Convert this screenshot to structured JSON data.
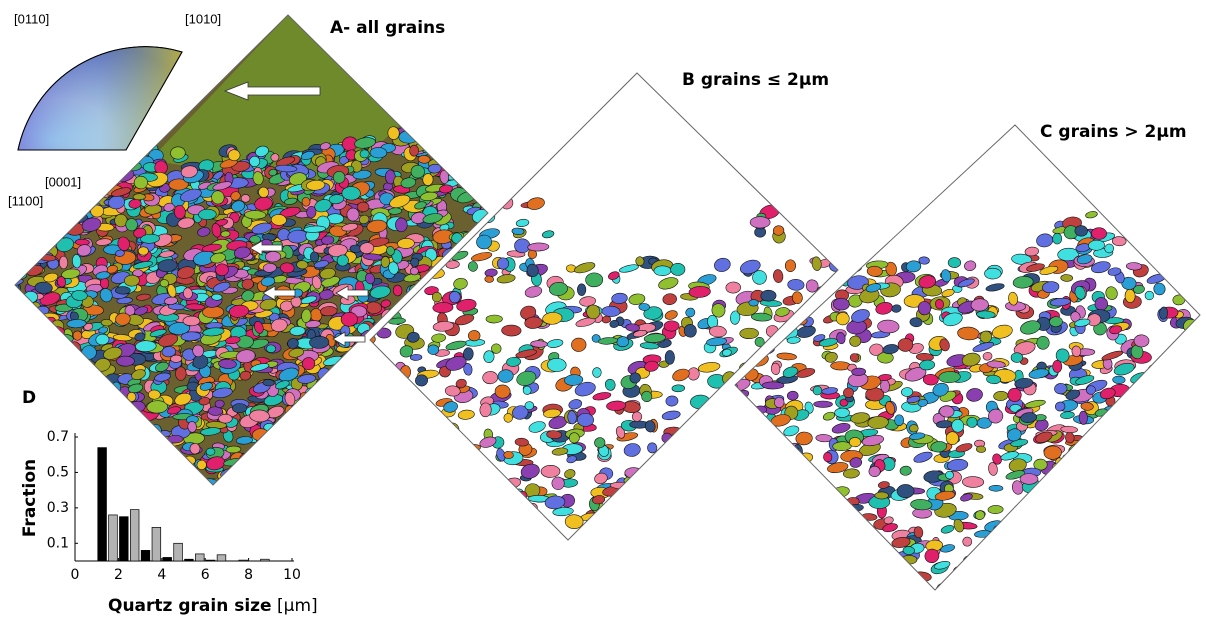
{
  "panels": {
    "a_title": "A- all grains",
    "b_title": "B grains ≤ 2μm",
    "c_title": "C grains > 2μm",
    "key_labels": [
      "[0110]",
      "[1010]",
      "[0001]",
      "[1100]"
    ]
  },
  "chart_data": {
    "type": "bar",
    "panel_label": "D",
    "ylabel": "Fraction",
    "xlabel": "Quartz grain size",
    "xlabel_unit": "[μm]",
    "xlim": [
      0,
      10
    ],
    "xticks": [
      0,
      2,
      4,
      6,
      8,
      10
    ],
    "ylim": [
      0,
      0.7
    ],
    "yticks": [
      0.1,
      0.3,
      0.5,
      0.7
    ],
    "bar_width": 0.4,
    "series": [
      {
        "color": "#000000",
        "x": [
          1.25,
          2.25,
          3.25,
          4.25,
          5.25,
          6.25
        ],
        "values": [
          0.64,
          0.25,
          0.06,
          0.02,
          0.01,
          0.005
        ]
      },
      {
        "color": "#b3b3b3",
        "x": [
          1.75,
          2.75,
          3.75,
          4.75,
          5.75,
          6.75,
          7.75,
          8.75
        ],
        "values": [
          0.26,
          0.29,
          0.19,
          0.1,
          0.04,
          0.035,
          0.005,
          0.01
        ]
      }
    ]
  }
}
